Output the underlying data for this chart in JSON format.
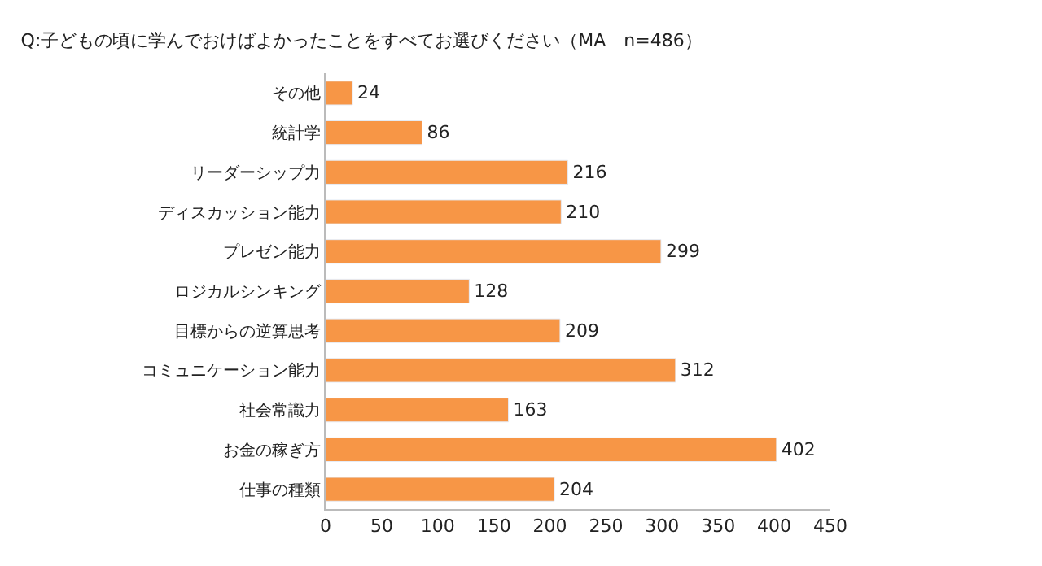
{
  "chart_data": {
    "type": "bar",
    "orientation": "horizontal",
    "title": "Q:子どもの頃に学んでおけばよかったことをすべてお選びください（MA　n=486）",
    "categories": [
      "その他",
      "統計学",
      "リーダーシップ力",
      "ディスカッション能力",
      "プレゼン能力",
      "ロジカルシンキング",
      "目標からの逆算思考",
      "コミュニケーション能力",
      "社会常識力",
      "お金の稼ぎ方",
      "仕事の種類"
    ],
    "values": [
      24,
      86,
      216,
      210,
      299,
      128,
      209,
      312,
      163,
      402,
      204
    ],
    "color": "#f79646",
    "data_labels": true,
    "xlim": [
      0,
      450
    ],
    "xticks": [
      0,
      50,
      100,
      150,
      200,
      250,
      300,
      350,
      400,
      450
    ],
    "grid": false,
    "legend": false
  }
}
